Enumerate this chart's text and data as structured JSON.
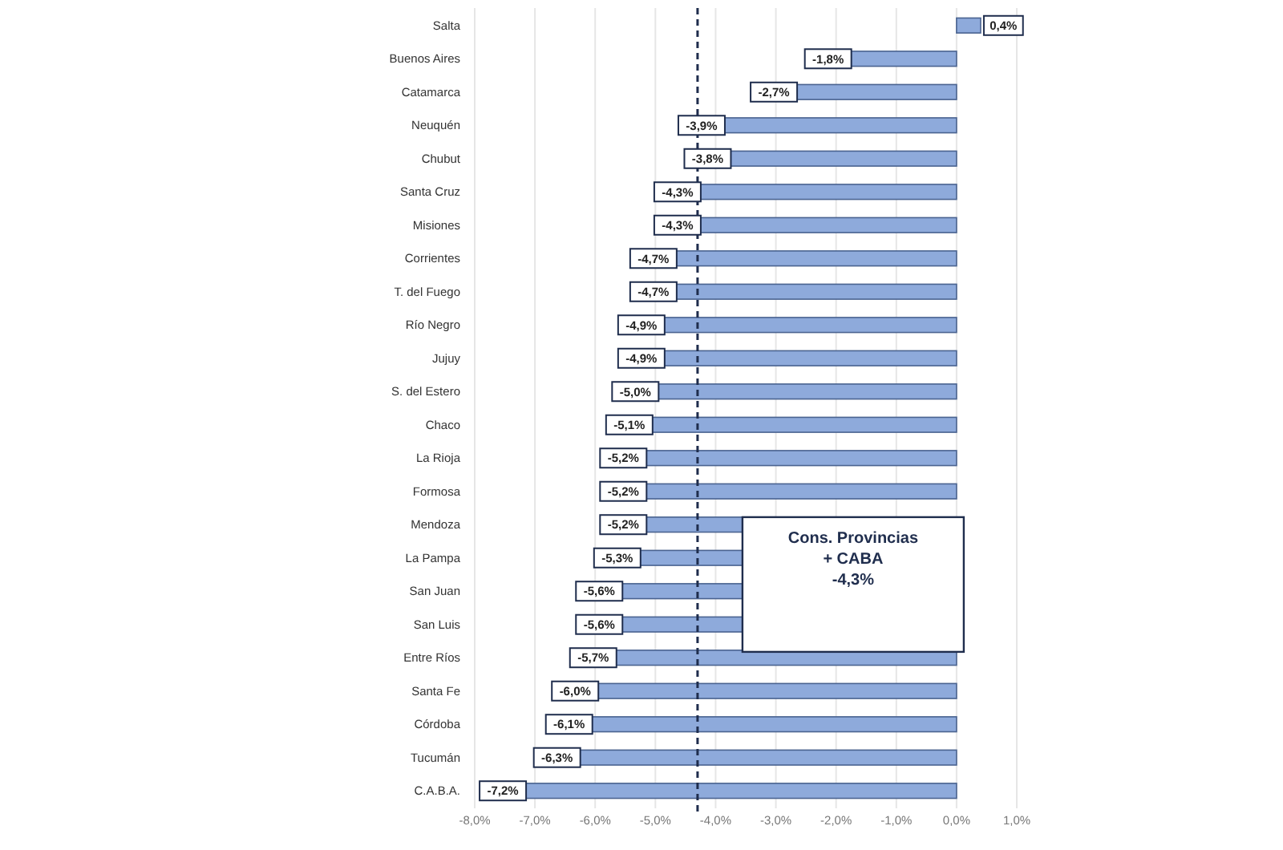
{
  "chart_data": {
    "type": "bar",
    "orientation": "horizontal",
    "categories": [
      "Salta",
      "Buenos Aires",
      "Catamarca",
      "Neuquén",
      "Chubut",
      "Santa Cruz",
      "Misiones",
      "Corrientes",
      "T. del Fuego",
      "Río Negro",
      "Jujuy",
      "S. del Estero",
      "Chaco",
      "La Rioja",
      "Formosa",
      "Mendoza",
      "La Pampa",
      "San Juan",
      "San Luis",
      "Entre Ríos",
      "Santa Fe",
      "Córdoba",
      "Tucumán",
      "C.A.B.A."
    ],
    "values": [
      0.4,
      -1.8,
      -2.7,
      -3.9,
      -3.8,
      -4.3,
      -4.3,
      -4.7,
      -4.7,
      -4.9,
      -4.9,
      -5.0,
      -5.1,
      -5.2,
      -5.2,
      -5.2,
      -5.3,
      -5.6,
      -5.6,
      -5.7,
      -6.0,
      -6.1,
      -6.3,
      -7.2
    ],
    "value_labels": [
      "0,4%",
      "-1,8%",
      "-2,7%",
      "-3,9%",
      "-3,8%",
      "-4,3%",
      "-4,3%",
      "-4,7%",
      "-4,7%",
      "-4,9%",
      "-4,9%",
      "-5,0%",
      "-5,1%",
      "-5,2%",
      "-5,2%",
      "-5,2%",
      "-5,3%",
      "-5,6%",
      "-5,6%",
      "-5,7%",
      "-6,0%",
      "-6,1%",
      "-6,3%",
      "-7,2%"
    ],
    "color": "#8eaadb",
    "xlim": [
      -8,
      1
    ],
    "xticks": [
      {
        "value": -8,
        "label": "-8,0%"
      },
      {
        "value": -7,
        "label": "-7,0%"
      },
      {
        "value": -6,
        "label": "-6,0%"
      },
      {
        "value": -5,
        "label": "-5,0%"
      },
      {
        "value": -4,
        "label": "-4,0%"
      },
      {
        "value": -3,
        "label": "-3,0%"
      },
      {
        "value": -2,
        "label": "-2,0%"
      },
      {
        "value": -1,
        "label": "-1,0%"
      },
      {
        "value": 0,
        "label": "0,0%"
      },
      {
        "value": 1,
        "label": "1,0%"
      }
    ],
    "grid": "x",
    "ref_lines": [
      {
        "axis": "x",
        "value": -4.3,
        "label": "Cons. Provincias\n+ CABA\n-4,3%",
        "line_style": "dashed",
        "color": "#1f2d4d"
      }
    ]
  }
}
